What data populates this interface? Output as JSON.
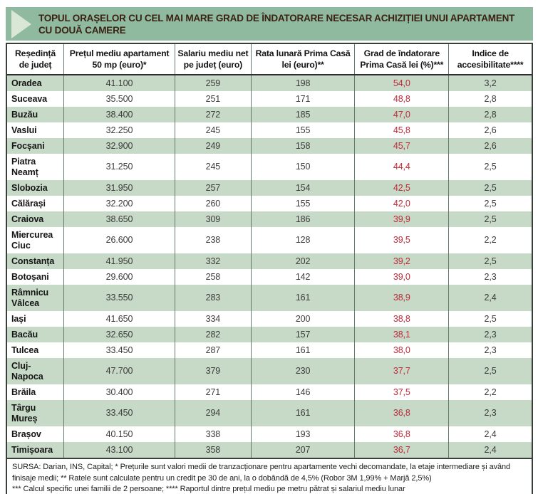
{
  "title": {
    "line1": "TOPUL ORAȘELOR CU CEL MAI MARE GRAD DE ÎNDATORARE NECESAR ACHIZIȚIEI UNUI APARTAMENT",
    "line2": "CU DOUĂ CAMERE"
  },
  "table": {
    "columns": [
      {
        "label": "Reședință\nde județ"
      },
      {
        "label": "Prețul mediu apartament\n50 mp (euro)*"
      },
      {
        "label": "Salariu mediu net\npe județ (euro)"
      },
      {
        "label": "Rata lunară Prima Casă\nlei (euro)**"
      },
      {
        "label": "Grad de îndatorare\nPrima Casă lei (%)***"
      },
      {
        "label": "Indice de\naccesibilitate****"
      }
    ],
    "rows": [
      {
        "city": "Oradea",
        "price": "41.100",
        "salary": "259",
        "rate": "198",
        "debt": "54,0",
        "index": "3,2"
      },
      {
        "city": "Suceava",
        "price": "35.500",
        "salary": "251",
        "rate": "171",
        "debt": "48,8",
        "index": "2,8"
      },
      {
        "city": "Buzău",
        "price": "38.400",
        "salary": "272",
        "rate": "185",
        "debt": "47,0",
        "index": "2,8"
      },
      {
        "city": "Vaslui",
        "price": "32.250",
        "salary": "245",
        "rate": "155",
        "debt": "45,8",
        "index": "2,6"
      },
      {
        "city": "Focșani",
        "price": "32.900",
        "salary": "249",
        "rate": "158",
        "debt": "45,7",
        "index": "2,6"
      },
      {
        "city": "Piatra Neamț",
        "price": "31.250",
        "salary": "245",
        "rate": "150",
        "debt": "44,4",
        "index": "2,5"
      },
      {
        "city": "Slobozia",
        "price": "31.950",
        "salary": "257",
        "rate": "154",
        "debt": "42,5",
        "index": "2,5"
      },
      {
        "city": "Călărași",
        "price": "32.200",
        "salary": "260",
        "rate": "155",
        "debt": "42,0",
        "index": "2,5"
      },
      {
        "city": "Craiova",
        "price": "38.650",
        "salary": "309",
        "rate": "186",
        "debt": "39,9",
        "index": "2,5"
      },
      {
        "city": "Miercurea Ciuc",
        "price": "26.600",
        "salary": "238",
        "rate": "128",
        "debt": "39,5",
        "index": "2,2"
      },
      {
        "city": "Constanța",
        "price": "41.950",
        "salary": "332",
        "rate": "202",
        "debt": "39,2",
        "index": "2,5"
      },
      {
        "city": "Botoșani",
        "price": "29.600",
        "salary": "258",
        "rate": "142",
        "debt": "39,0",
        "index": "2,3"
      },
      {
        "city": "Râmnicu Vâlcea",
        "price": "33.550",
        "salary": "283",
        "rate": "161",
        "debt": "38,9",
        "index": "2,4"
      },
      {
        "city": "Iași",
        "price": "41.650",
        "salary": "334",
        "rate": "200",
        "debt": "38,8",
        "index": "2,5"
      },
      {
        "city": "Bacău",
        "price": "32.650",
        "salary": "282",
        "rate": "157",
        "debt": "38,1",
        "index": "2,3"
      },
      {
        "city": "Tulcea",
        "price": "33.450",
        "salary": "287",
        "rate": "161",
        "debt": "38,0",
        "index": "2,3"
      },
      {
        "city": "Cluj-Napoca",
        "price": "47.700",
        "salary": "379",
        "rate": "230",
        "debt": "37,7",
        "index": "2,5"
      },
      {
        "city": "Brăila",
        "price": "30.400",
        "salary": "271",
        "rate": "146",
        "debt": "37,5",
        "index": "2,2"
      },
      {
        "city": "Târgu Mureș",
        "price": "33.450",
        "salary": "294",
        "rate": "161",
        "debt": "36,8",
        "index": "2,3"
      },
      {
        "city": "Brașov",
        "price": "40.150",
        "salary": "338",
        "rate": "193",
        "debt": "36,8",
        "index": "2,4"
      },
      {
        "city": "Timișoara",
        "price": "43.100",
        "salary": "358",
        "rate": "207",
        "debt": "36,7",
        "index": "2,4"
      }
    ]
  },
  "footer": {
    "lines": [
      "SURSA: Darian, INS, Capital; * Prețurile sunt valori medii de tranzacționare pentru apartamente vechi decomandate, la etaje intermediare și având",
      "finisaje medii; ** Ratele sunt calculate pentru un credit pe 30 de ani, la o dobândă de 4,5% (Robor 3M 1,99% + Marjă 2,5%)",
      "*** Calcul specific unei familii de 2 persoane; **** Raportul dintre prețul mediu pe metru pătrat și salariul mediu lunar"
    ]
  },
  "colors": {
    "title_bar_green": "#8fbaa0",
    "arrow_light_green": "#d9e8d6",
    "title_text_brown": "#3a2113",
    "row_green": "#c7d9c7",
    "debt_red": "#c02a3a",
    "border_dark": "#383f39",
    "column_separator_green": "#637a6b"
  },
  "chart_data": {
    "type": "table",
    "title": "TOPUL ORAȘELOR CU CEL MAI MARE GRAD DE ÎNDATORARE NECESAR ACHIZIȚIEI UNUI APARTAMENT CU DOUĂ CAMERE",
    "columns": [
      "Reședință de județ",
      "Prețul mediu apartament 50 mp (euro)*",
      "Salariu mediu net pe județ (euro)",
      "Rata lunară Prima Casă lei (euro)**",
      "Grad de îndatorare Prima Casă lei (%)***",
      "Indice de accesibilitate****"
    ],
    "rows": [
      [
        "Oradea",
        41100,
        259,
        198,
        54.0,
        3.2
      ],
      [
        "Suceava",
        35500,
        251,
        171,
        48.8,
        2.8
      ],
      [
        "Buzău",
        38400,
        272,
        185,
        47.0,
        2.8
      ],
      [
        "Vaslui",
        32250,
        245,
        155,
        45.8,
        2.6
      ],
      [
        "Focșani",
        32900,
        249,
        158,
        45.7,
        2.6
      ],
      [
        "Piatra Neamț",
        31250,
        245,
        150,
        44.4,
        2.5
      ],
      [
        "Slobozia",
        31950,
        257,
        154,
        42.5,
        2.5
      ],
      [
        "Călărași",
        32200,
        260,
        155,
        42.0,
        2.5
      ],
      [
        "Craiova",
        38650,
        309,
        186,
        39.9,
        2.5
      ],
      [
        "Miercurea Ciuc",
        26600,
        238,
        128,
        39.5,
        2.2
      ],
      [
        "Constanța",
        41950,
        332,
        202,
        39.2,
        2.5
      ],
      [
        "Botoșani",
        29600,
        258,
        142,
        39.0,
        2.3
      ],
      [
        "Râmnicu Vâlcea",
        33550,
        283,
        161,
        38.9,
        2.4
      ],
      [
        "Iași",
        41650,
        334,
        200,
        38.8,
        2.5
      ],
      [
        "Bacău",
        32650,
        282,
        157,
        38.1,
        2.3
      ],
      [
        "Tulcea",
        33450,
        287,
        161,
        38.0,
        2.3
      ],
      [
        "Cluj-Napoca",
        47700,
        379,
        230,
        37.7,
        2.5
      ],
      [
        "Brăila",
        30400,
        271,
        146,
        37.5,
        2.2
      ],
      [
        "Târgu Mureș",
        33450,
        294,
        161,
        36.8,
        2.3
      ],
      [
        "Brașov",
        40150,
        338,
        193,
        36.8,
        2.4
      ],
      [
        "Timișoara",
        43100,
        358,
        207,
        36.7,
        2.4
      ]
    ],
    "notes": "Values in 'Grad de îndatorare' column rendered in red; rows alternate green/white shading starting with green"
  }
}
